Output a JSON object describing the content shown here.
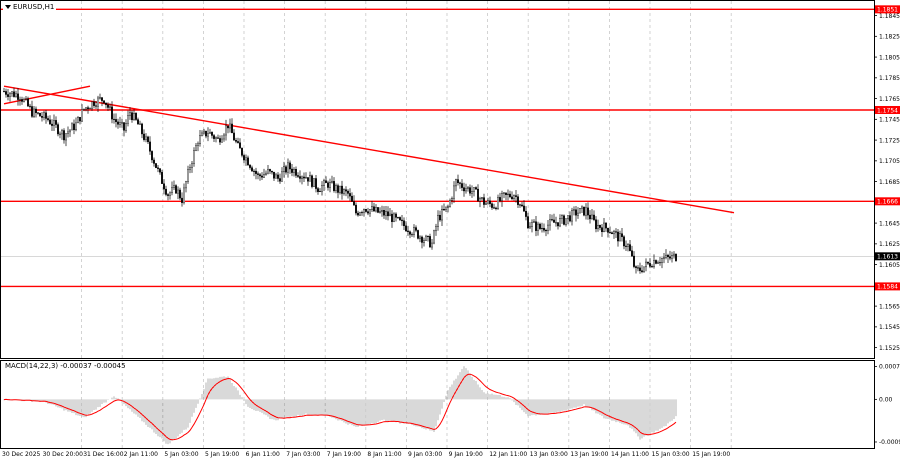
{
  "window": {
    "symbol": "EURUSD,H1",
    "menu_icon": "triangle-down-icon"
  },
  "colors": {
    "background": "#ffffff",
    "grid": "#c8c8c8",
    "candle": "#000000",
    "level_line": "#ff0000",
    "price_label_bg": "#ff0000",
    "price_label_text": "#ffffff",
    "current_price_bg": "#000000",
    "macd_hist": "#a0a0a0",
    "macd_signal": "#ff0000"
  },
  "chart_data": [
    {
      "type": "candlestick",
      "title": "EURUSD,H1",
      "ylim": [
        1.1515,
        1.186
      ],
      "y_ticks": [
        "1.1845",
        "1.1825",
        "1.1805",
        "1.1785",
        "1.1765",
        "1.1745",
        "1.1725",
        "1.1705",
        "1.1685",
        "1.1665",
        "1.1645",
        "1.1625",
        "1.1605",
        "1.1585",
        "1.1565",
        "1.1545",
        "1.1525"
      ],
      "x_ticks": [
        "30 Dec 2025",
        "30 Dec 20:00",
        "31 Dec 16:00",
        "2 Jan 11:00",
        "5 Jan 03:00",
        "5 Jan 19:00",
        "6 Jan 11:00",
        "7 Jan 03:00",
        "7 Jan 19:00",
        "8 Jan 11:00",
        "9 Jan 03:00",
        "9 Jan 19:00",
        "12 Jan 11:00",
        "13 Jan 03:00",
        "13 Jan 19:00",
        "14 Jan 11:00",
        "15 Jan 03:00",
        "15 Jan 19:00"
      ],
      "horizontal_levels": [
        {
          "price": 1.1851,
          "label": "1.1851"
        },
        {
          "price": 1.1754,
          "label": "1.1754"
        },
        {
          "price": 1.1666,
          "label": "1.1666"
        },
        {
          "price": 1.1584,
          "label": "1.1584"
        }
      ],
      "current_price": {
        "price": 1.1613,
        "label": "1.1613"
      },
      "trendlines": [
        {
          "from": {
            "bar": 0,
            "price": 1.1777
          },
          "to": {
            "bar": 365,
            "price": 1.1655
          }
        },
        {
          "from": {
            "bar": 0,
            "price": 1.176
          },
          "to": {
            "bar": 43,
            "price": 1.1777
          }
        }
      ],
      "price_path": [
        [
          0,
          1.1772
        ],
        [
          8,
          1.1768
        ],
        [
          14,
          1.1752
        ],
        [
          22,
          1.1745
        ],
        [
          30,
          1.173
        ],
        [
          36,
          1.174
        ],
        [
          40,
          1.1755
        ],
        [
          45,
          1.1762
        ],
        [
          50,
          1.1765
        ],
        [
          55,
          1.1745
        ],
        [
          60,
          1.1735
        ],
        [
          63,
          1.1752
        ],
        [
          67,
          1.174
        ],
        [
          72,
          1.172
        ],
        [
          78,
          1.169
        ],
        [
          82,
          1.1673
        ],
        [
          86,
          1.1678
        ],
        [
          89,
          1.1668
        ],
        [
          93,
          1.17
        ],
        [
          97,
          1.1725
        ],
        [
          102,
          1.1733
        ],
        [
          107,
          1.1725
        ],
        [
          112,
          1.174
        ],
        [
          117,
          1.1718
        ],
        [
          122,
          1.1705
        ],
        [
          127,
          1.169
        ],
        [
          132,
          1.1694
        ],
        [
          137,
          1.1688
        ],
        [
          142,
          1.1699
        ],
        [
          147,
          1.1694
        ],
        [
          152,
          1.1689
        ],
        [
          157,
          1.1679
        ],
        [
          162,
          1.1683
        ],
        [
          167,
          1.1677
        ],
        [
          172,
          1.1673
        ],
        [
          176,
          1.1655
        ],
        [
          180,
          1.166
        ],
        [
          186,
          1.1656
        ],
        [
          192,
          1.1653
        ],
        [
          198,
          1.1645
        ],
        [
          204,
          1.1638
        ],
        [
          210,
          1.163
        ],
        [
          214,
          1.1625
        ],
        [
          217,
          1.165
        ],
        [
          222,
          1.166
        ],
        [
          226,
          1.1685
        ],
        [
          230,
          1.168
        ],
        [
          235,
          1.1675
        ],
        [
          240,
          1.1665
        ],
        [
          245,
          1.1662
        ],
        [
          250,
          1.167
        ],
        [
          255,
          1.1673
        ],
        [
          258,
          1.1665
        ],
        [
          262,
          1.1645
        ],
        [
          268,
          1.164
        ],
        [
          274,
          1.1645
        ],
        [
          280,
          1.1648
        ],
        [
          286,
          1.1655
        ],
        [
          291,
          1.1657
        ],
        [
          296,
          1.1643
        ],
        [
          302,
          1.164
        ],
        [
          308,
          1.163
        ],
        [
          312,
          1.1623
        ],
        [
          316,
          1.1598
        ],
        [
          320,
          1.1603
        ],
        [
          326,
          1.161
        ],
        [
          332,
          1.1611
        ],
        [
          336,
          1.1613
        ]
      ]
    },
    {
      "type": "histogram+line",
      "title": "MACD(14,22,3) -0.00037 -0.00045",
      "ylim": [
        -0.00105,
        0.00085
      ],
      "y_ticks": [
        "0.00071",
        "0.00",
        "-0.00092"
      ],
      "hist_path": [
        [
          0,
          0.0
        ],
        [
          20,
          -5e-05
        ],
        [
          40,
          -0.0004
        ],
        [
          55,
          8e-05
        ],
        [
          70,
          -0.0005
        ],
        [
          82,
          -0.00098
        ],
        [
          92,
          -0.0006
        ],
        [
          102,
          0.00045
        ],
        [
          112,
          0.0005
        ],
        [
          122,
          -0.00015
        ],
        [
          135,
          -0.00045
        ],
        [
          150,
          -0.00032
        ],
        [
          162,
          -0.00035
        ],
        [
          176,
          -0.0006
        ],
        [
          190,
          -0.00045
        ],
        [
          205,
          -0.00055
        ],
        [
          215,
          -0.0007
        ],
        [
          222,
          0.0002
        ],
        [
          230,
          0.00072
        ],
        [
          240,
          0.00015
        ],
        [
          252,
          5e-05
        ],
        [
          262,
          -0.00035
        ],
        [
          275,
          -0.0003
        ],
        [
          290,
          -0.00012
        ],
        [
          300,
          -0.0004
        ],
        [
          312,
          -0.00055
        ],
        [
          318,
          -0.00085
        ],
        [
          330,
          -0.0006
        ],
        [
          336,
          -0.00037
        ]
      ]
    }
  ]
}
